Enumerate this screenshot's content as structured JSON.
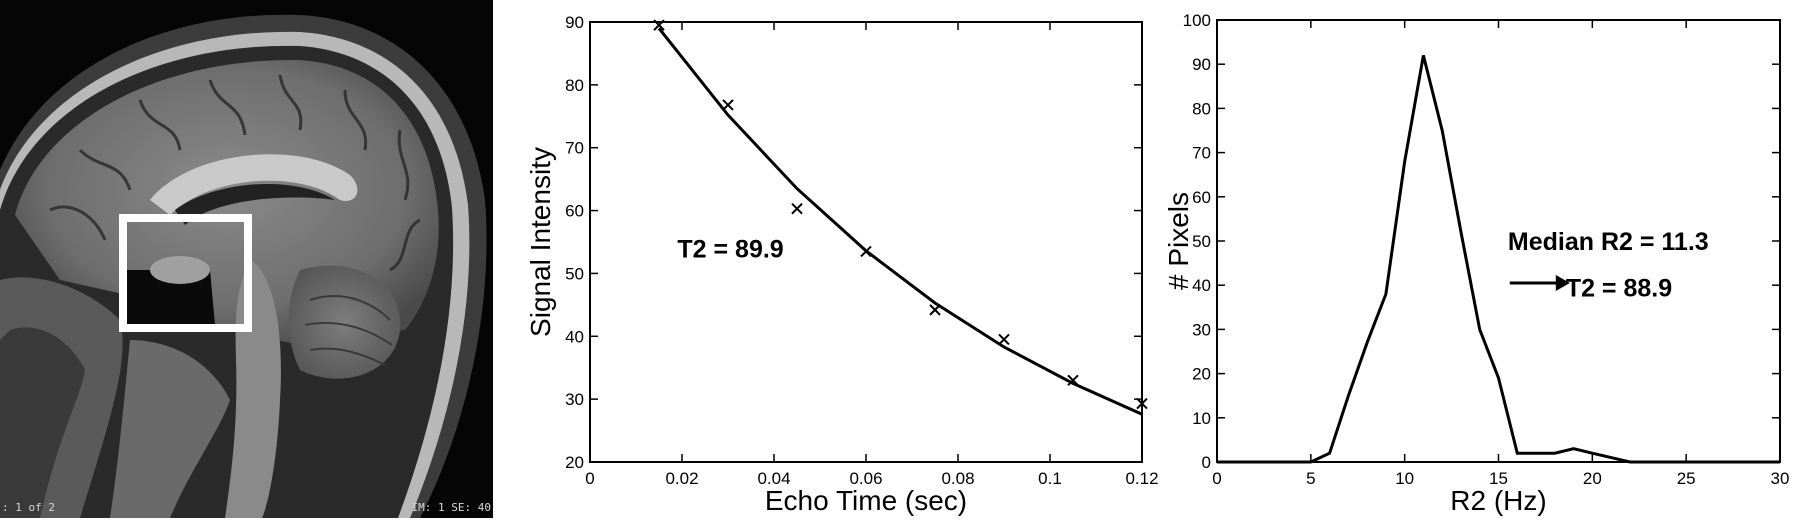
{
  "mri": {
    "overlay_left": ": 1 of 2",
    "overlay_right": "IM: 1 SE: 40"
  },
  "chart_data": [
    {
      "type": "scatter",
      "xlabel": "Echo Time (sec)",
      "ylabel": "Signal Intensity",
      "xlim": [
        0,
        0.12
      ],
      "ylim": [
        20,
        90
      ],
      "xticks": [
        0,
        0.02,
        0.04,
        0.06,
        0.08,
        0.1,
        0.12
      ],
      "xtick_labels": [
        "0",
        "0.02",
        "0.04",
        "0.06",
        "0.08",
        "0.1",
        "0.12"
      ],
      "yticks": [
        20,
        30,
        40,
        50,
        60,
        70,
        80,
        90
      ],
      "series": [
        {
          "kind": "markers",
          "marker": "x",
          "x": [
            0.015,
            0.03,
            0.045,
            0.06,
            0.075,
            0.09,
            0.105,
            0.12
          ],
          "y": [
            89.5,
            76.8,
            60.3,
            53.5,
            44.2,
            39.5,
            33.0,
            29.3
          ]
        },
        {
          "kind": "line",
          "x": [
            0.015,
            0.03,
            0.045,
            0.06,
            0.075,
            0.09,
            0.105,
            0.12
          ],
          "y": [
            89.0,
            75.2,
            63.5,
            53.6,
            45.3,
            38.3,
            32.5,
            27.6
          ]
        }
      ],
      "annotations": [
        "T2 = 89.9"
      ],
      "grid": false
    },
    {
      "type": "line",
      "xlabel": "R2 (Hz)",
      "ylabel": "# Pixels",
      "xlim": [
        0,
        30
      ],
      "ylim": [
        0,
        100
      ],
      "xticks": [
        0,
        5,
        10,
        15,
        20,
        25,
        30
      ],
      "yticks": [
        0,
        10,
        20,
        30,
        40,
        50,
        60,
        70,
        80,
        90,
        100
      ],
      "series": [
        {
          "x": [
            0,
            5,
            6,
            7,
            8,
            9,
            10,
            11,
            12,
            13,
            14,
            15,
            16,
            17,
            18,
            19,
            20,
            21,
            22,
            23,
            25,
            30
          ],
          "y": [
            0,
            0,
            2,
            15,
            27,
            38,
            68,
            92,
            75,
            52,
            30,
            19,
            2,
            2,
            2,
            3,
            2,
            1,
            0,
            0,
            0,
            0
          ]
        }
      ],
      "annotations": [
        "Median R2 = 11.3",
        "T2 = 88.9"
      ],
      "grid": false
    }
  ]
}
